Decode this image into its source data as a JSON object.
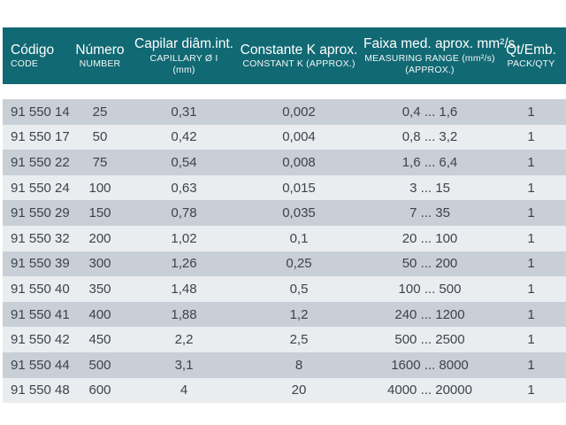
{
  "colors": {
    "header_bg": "#116973",
    "header_text": "#ffffff",
    "row_dark": "#c8cfd6",
    "row_light": "#e9edf0",
    "text": "#3d434b",
    "page_bg": "#ffffff"
  },
  "table": {
    "columns": [
      {
        "title": "Código",
        "subtitle": "CODE"
      },
      {
        "title": "Número",
        "subtitle": "NUMBER"
      },
      {
        "title": "Capilar diâm.int.",
        "subtitle": "CAPILLARY Ø I",
        "subtitle2": "(mm)"
      },
      {
        "title": "Constante K aprox.",
        "subtitle": "CONSTANT K (APPROX.)"
      },
      {
        "title": "Faixa med. aprox. mm²/s",
        "subtitle": "MEASURING RANGE (mm²/s)",
        "subtitle2": "(APPROX.)"
      },
      {
        "title": "Qt/Emb.",
        "subtitle": "PACK/QTY"
      }
    ],
    "rows": [
      [
        "91 550 14",
        "25",
        "0,31",
        "0,002",
        "0,4 ... 1,6",
        "1"
      ],
      [
        "91 550 17",
        "50",
        "0,42",
        "0,004",
        "0,8 ... 3,2",
        "1"
      ],
      [
        "91 550 22",
        "75",
        "0,54",
        "0,008",
        "1,6 ... 6,4",
        "1"
      ],
      [
        "91 550 24",
        "100",
        "0,63",
        "0,015",
        "3 ... 15",
        "1"
      ],
      [
        "91 550 29",
        "150",
        "0,78",
        "0,035",
        "7 ... 35",
        "1"
      ],
      [
        "91 550 32",
        "200",
        "1,02",
        "0,1",
        "20 ... 100",
        "1"
      ],
      [
        "91 550 39",
        "300",
        "1,26",
        "0,25",
        "50 ... 200",
        "1"
      ],
      [
        "91 550 40",
        "350",
        "1,48",
        "0,5",
        "100 ... 500",
        "1"
      ],
      [
        "91 550 41",
        "400",
        "1,88",
        "1,2",
        "240 ... 1200",
        "1"
      ],
      [
        "91 550 42",
        "450",
        "2,2",
        "2,5",
        "500 ... 2500",
        "1"
      ],
      [
        "91 550 44",
        "500",
        "3,1",
        "8",
        "1600 ... 8000",
        "1"
      ],
      [
        "91 550 48",
        "600",
        "4",
        "20",
        "4000 ... 20000",
        "1"
      ]
    ]
  }
}
